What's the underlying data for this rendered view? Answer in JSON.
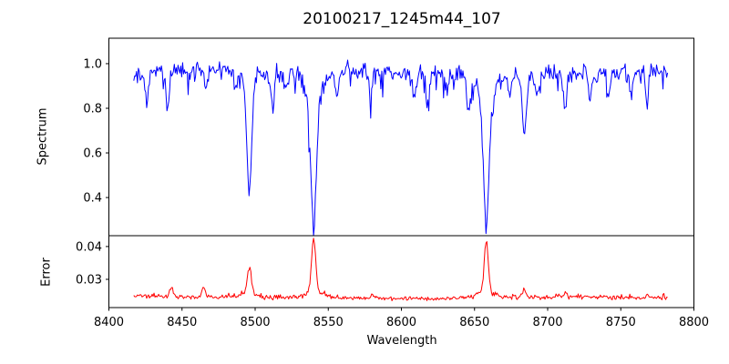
{
  "title": "20100217_1245m44_107",
  "colors": {
    "spectrum_line": "#0000ff",
    "error_line": "#ff0000",
    "axis": "#000000",
    "background": "#ffffff",
    "text": "#000000"
  },
  "chart_data": [
    {
      "type": "line",
      "panel": "spectrum",
      "title": "20100217_1245m44_107",
      "ylabel": "Spectrum",
      "series_name": "spectrum",
      "series_color": "#0000ff",
      "grid": false,
      "legend": "none",
      "xlim": [
        8400,
        8800
      ],
      "ylim": [
        0.229,
        1.114
      ],
      "yticks": [
        {
          "value": 1.0,
          "label": "1.0"
        },
        {
          "value": 0.8,
          "label": "0.8"
        },
        {
          "value": 0.6,
          "label": "0.6"
        },
        {
          "value": 0.4,
          "label": "0.4"
        }
      ],
      "data_x_start": 8417,
      "data_x_end": 8782,
      "n_points": 580,
      "continuum_level": 0.963,
      "noise_sigma": 0.018,
      "absorption_features": [
        {
          "wavelength": 8496,
          "core_depth": 0.5,
          "core_sigma": 1.6,
          "wing_depth": 0.06,
          "wing_sigma": 5,
          "min_value": 0.46
        },
        {
          "wavelength": 8540,
          "core_depth": 0.58,
          "core_sigma": 2.0,
          "wing_depth": 0.1,
          "wing_sigma": 7,
          "min_value": 0.28
        },
        {
          "wavelength": 8658,
          "core_depth": 0.55,
          "core_sigma": 2.0,
          "wing_depth": 0.09,
          "wing_sigma": 7,
          "min_value": 0.31
        },
        {
          "wavelength": 8684,
          "core_depth": 0.22,
          "core_sigma": 1.3,
          "wing_depth": 0.04,
          "wing_sigma": 4,
          "min_value": 0.71
        }
      ],
      "minor_lines": [
        [
          8426,
          0.1
        ],
        [
          8440,
          0.19
        ],
        [
          8466,
          0.09
        ],
        [
          8487,
          0.08
        ],
        [
          8512,
          0.18
        ],
        [
          8521,
          0.08
        ],
        [
          8556,
          0.1
        ],
        [
          8579,
          0.1
        ],
        [
          8609,
          0.12
        ],
        [
          8618,
          0.14
        ],
        [
          8631,
          0.08
        ],
        [
          8646,
          0.15
        ],
        [
          8674,
          0.09
        ],
        [
          8693,
          0.12
        ],
        [
          8712,
          0.16
        ],
        [
          8729,
          0.12
        ],
        [
          8742,
          0.1
        ],
        [
          8757,
          0.11
        ],
        [
          8768,
          0.14
        ]
      ]
    },
    {
      "type": "line",
      "panel": "error",
      "ylabel": "Error",
      "xlabel": "Wavelength",
      "series_name": "error",
      "series_color": "#ff0000",
      "grid": false,
      "legend": "none",
      "xlim": [
        8400,
        8800
      ],
      "ylim": [
        0.0214,
        0.0433
      ],
      "yticks": [
        {
          "value": 0.04,
          "label": "0.04"
        },
        {
          "value": 0.03,
          "label": "0.03"
        }
      ],
      "xticks": [
        {
          "value": 8400,
          "label": "8400"
        },
        {
          "value": 8450,
          "label": "8450"
        },
        {
          "value": 8500,
          "label": "8500"
        },
        {
          "value": 8550,
          "label": "8550"
        },
        {
          "value": 8600,
          "label": "8600"
        },
        {
          "value": 8650,
          "label": "8650"
        },
        {
          "value": 8700,
          "label": "8700"
        },
        {
          "value": 8750,
          "label": "8750"
        },
        {
          "value": 8800,
          "label": "8800"
        }
      ],
      "data_x_start": 8417,
      "data_x_end": 8782,
      "n_points": 580,
      "baseline_level": 0.0244,
      "noise_sigma": 0.00035,
      "peaks": [
        {
          "wavelength": 8496,
          "core_height": 0.0085,
          "core_sigma": 1.3,
          "wing_height": 0.0012,
          "wing_sigma": 5,
          "max_value": 0.0335
        },
        {
          "wavelength": 8540,
          "core_height": 0.0165,
          "core_sigma": 1.4,
          "wing_height": 0.0018,
          "wing_sigma": 6,
          "max_value": 0.0425
        },
        {
          "wavelength": 8658,
          "core_height": 0.0152,
          "core_sigma": 1.4,
          "wing_height": 0.0018,
          "wing_sigma": 6,
          "max_value": 0.041
        }
      ],
      "minor_bumps": [
        [
          8443,
          0.003
        ],
        [
          8465,
          0.0028
        ],
        [
          8684,
          0.0024
        ],
        [
          8712,
          0.0012
        ],
        [
          8768,
          0.0012
        ],
        [
          8580,
          0.001
        ]
      ]
    }
  ]
}
